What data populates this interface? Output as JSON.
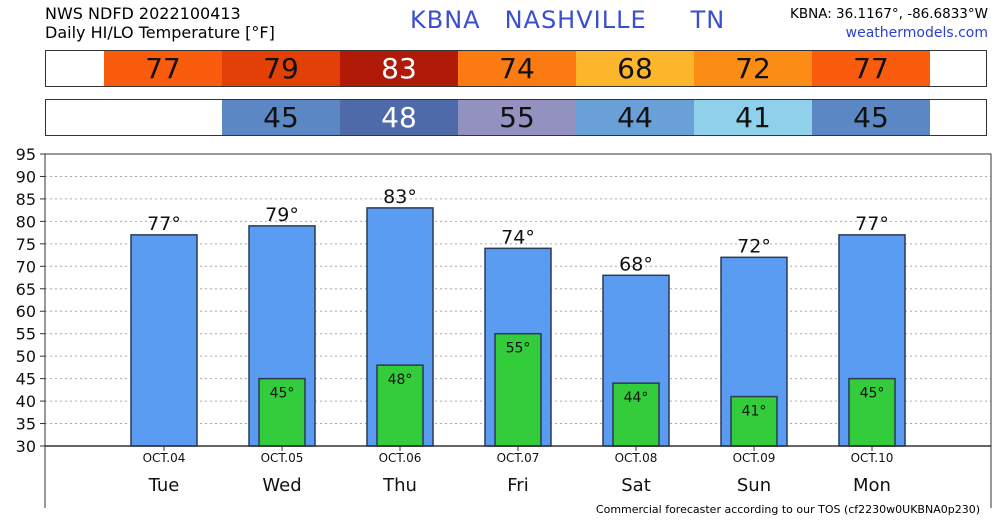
{
  "header": {
    "line1": "NWS NDFD 2022100413",
    "line2": "Daily HI/LO Temperature [°F]",
    "station": "KBNA",
    "city": "NASHVILLE",
    "state": "TN",
    "coords": "KBNA: 36.1167°, -86.6833°W",
    "website": "weathermodels.com"
  },
  "strips": {
    "hi": [
      {
        "value": "77",
        "color": "#f85c0c",
        "text": "#111111"
      },
      {
        "value": "79",
        "color": "#e34008",
        "text": "#111111"
      },
      {
        "value": "83",
        "color": "#b01a07",
        "text": "#ffffff"
      },
      {
        "value": "74",
        "color": "#fb7a12",
        "text": "#111111"
      },
      {
        "value": "68",
        "color": "#fbb62c",
        "text": "#111111"
      },
      {
        "value": "72",
        "color": "#fb8c16",
        "text": "#111111"
      },
      {
        "value": "77",
        "color": "#f85c0c",
        "text": "#111111"
      }
    ],
    "lo": [
      {
        "value": "45",
        "color": "#5b88c4",
        "text": "#111111"
      },
      {
        "value": "48",
        "color": "#4f6aa8",
        "text": "#ffffff"
      },
      {
        "value": "55",
        "color": "#9391c0",
        "text": "#111111"
      },
      {
        "value": "44",
        "color": "#6aa0d8",
        "text": "#111111"
      },
      {
        "value": "41",
        "color": "#8fd0ea",
        "text": "#111111"
      },
      {
        "value": "45",
        "color": "#5b88c4",
        "text": "#111111"
      }
    ]
  },
  "chart_data": {
    "type": "bar",
    "categories": [
      "OCT.04",
      "OCT.05",
      "OCT.06",
      "OCT.07",
      "OCT.08",
      "OCT.09",
      "OCT.10"
    ],
    "day_labels": [
      "Tue",
      "Wed",
      "Thu",
      "Fri",
      "Sat",
      "Sun",
      "Mon"
    ],
    "series": [
      {
        "name": "HI",
        "values": [
          77,
          79,
          83,
          74,
          68,
          72,
          77
        ],
        "color": "#5a9cf2"
      },
      {
        "name": "LO",
        "values": [
          null,
          45,
          48,
          55,
          44,
          41,
          45
        ],
        "color": "#33cc3a"
      }
    ],
    "hi_labels": [
      "77°",
      "79°",
      "83°",
      "74°",
      "68°",
      "72°",
      "77°"
    ],
    "lo_labels": [
      "",
      "45°",
      "48°",
      "55°",
      "44°",
      "41°",
      "45°"
    ],
    "ylim": [
      30,
      95
    ],
    "yticks": [
      "30",
      "35",
      "40",
      "45",
      "50",
      "55",
      "60",
      "65",
      "70",
      "75",
      "80",
      "85",
      "90",
      "95"
    ],
    "grid": true
  },
  "footer": "Commercial forecaster according to our TOS (cf2230w0UKBNA0p230)"
}
